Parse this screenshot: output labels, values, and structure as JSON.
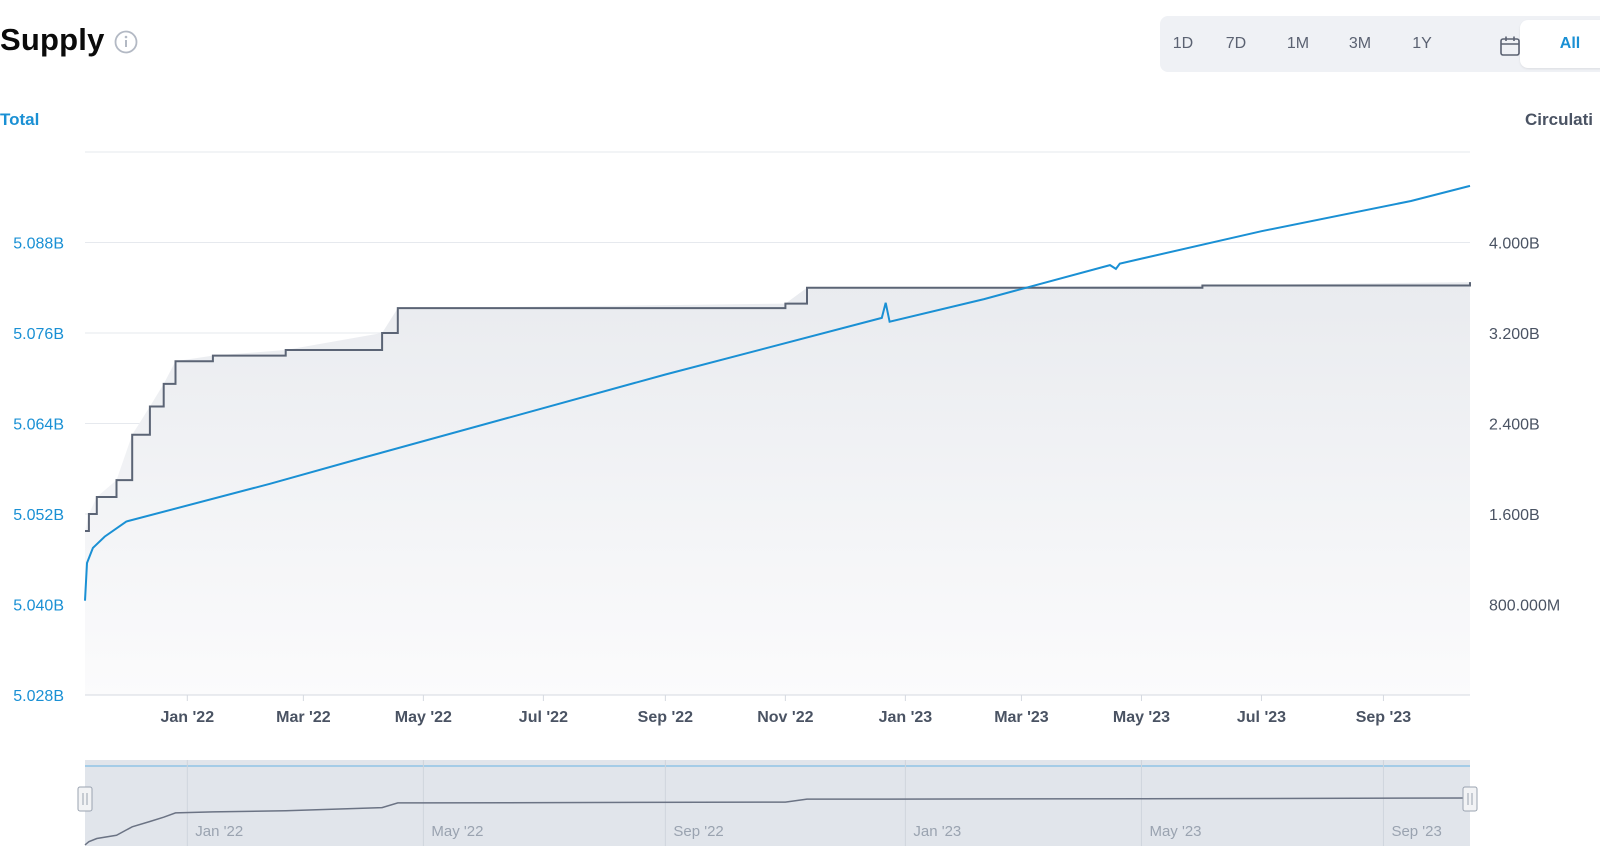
{
  "header": {
    "title": "Supply",
    "info_icon": "info-circle-icon"
  },
  "range_selector": {
    "options": [
      "1D",
      "7D",
      "1M",
      "3M",
      "1Y"
    ],
    "calendar_icon": "calendar-icon",
    "active": "All"
  },
  "colors": {
    "total": "#1a90d4",
    "circulating": "#5b6475",
    "grid": "#e6e9ee",
    "tick_text": "#4a5363"
  },
  "chart_data": {
    "type": "line",
    "left_axis_title": "Total",
    "right_axis_title": "Circulati",
    "left_ticks": [
      "5.028B",
      "5.040B",
      "5.052B",
      "5.064B",
      "5.076B",
      "5.088B"
    ],
    "right_ticks": [
      "800.000M",
      "1.600B",
      "2.400B",
      "3.200B",
      "4.000B"
    ],
    "x_ticks": [
      {
        "label": "Jan '22",
        "date": "2022-01-01"
      },
      {
        "label": "Mar '22",
        "date": "2022-03-01"
      },
      {
        "label": "May '22",
        "date": "2022-05-01"
      },
      {
        "label": "Jul '22",
        "date": "2022-07-01"
      },
      {
        "label": "Sep '22",
        "date": "2022-09-01"
      },
      {
        "label": "Nov '22",
        "date": "2022-11-01"
      },
      {
        "label": "Jan '23",
        "date": "2023-01-01"
      },
      {
        "label": "Mar '23",
        "date": "2023-03-01"
      },
      {
        "label": "May '23",
        "date": "2023-05-01"
      },
      {
        "label": "Jul '23",
        "date": "2023-07-01"
      },
      {
        "label": "Sep '23",
        "date": "2023-09-01"
      }
    ],
    "x_range": [
      "2021-11-10",
      "2023-10-15"
    ],
    "left_range": [
      5.028,
      5.1
    ],
    "right_range": [
      0,
      4.8
    ],
    "series": [
      {
        "axis": "left",
        "unit": "B",
        "points": [
          [
            "2021-11-10",
            5.0405
          ],
          [
            "2021-11-11",
            5.0455
          ],
          [
            "2021-11-14",
            5.0475
          ],
          [
            "2021-11-20",
            5.049
          ],
          [
            "2021-12-01",
            5.051
          ],
          [
            "2022-02-12",
            5.056
          ],
          [
            "2022-04-01",
            5.0595
          ],
          [
            "2022-09-01",
            5.0705
          ],
          [
            "2022-12-20",
            5.078
          ],
          [
            "2022-12-22",
            5.08
          ],
          [
            "2022-12-24",
            5.0775
          ],
          [
            "2023-02-10",
            5.0805
          ],
          [
            "2023-04-15",
            5.085
          ],
          [
            "2023-04-18",
            5.0845
          ],
          [
            "2023-04-20",
            5.0852
          ],
          [
            "2023-07-01",
            5.0895
          ],
          [
            "2023-09-15",
            5.0935
          ],
          [
            "2023-10-15",
            5.0955
          ]
        ]
      },
      {
        "axis": "right",
        "unit": "B",
        "points": [
          [
            "2021-11-10",
            1.45
          ],
          [
            "2021-11-12",
            1.6
          ],
          [
            "2021-11-16",
            1.75
          ],
          [
            "2021-11-26",
            1.9
          ],
          [
            "2021-12-04",
            2.3
          ],
          [
            "2021-12-13",
            2.55
          ],
          [
            "2021-12-20",
            2.75
          ],
          [
            "2021-12-26",
            2.95
          ],
          [
            "2022-01-14",
            3.0
          ],
          [
            "2022-02-20",
            3.05
          ],
          [
            "2022-04-10",
            3.2
          ],
          [
            "2022-04-18",
            3.42
          ],
          [
            "2022-05-01",
            3.42
          ],
          [
            "2022-11-01",
            3.46
          ],
          [
            "2022-11-12",
            3.6
          ],
          [
            "2022-12-20",
            3.6
          ],
          [
            "2023-06-01",
            3.62
          ],
          [
            "2023-10-15",
            3.65
          ]
        ]
      }
    ]
  },
  "navigator": {
    "labels": [
      "Jan '22",
      "May '22",
      "Sep '22",
      "Jan '23",
      "May '23",
      "Sep '23"
    ],
    "left_handle": "drag-handle-icon",
    "right_handle": "drag-handle-icon"
  }
}
